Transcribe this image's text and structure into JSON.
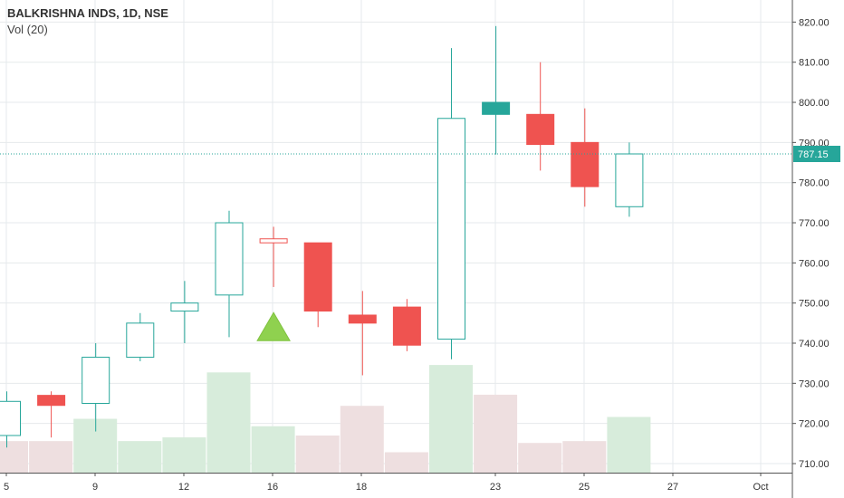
{
  "header": {
    "symbol_title": "BALKRISHNA INDS, 1D, NSE",
    "volume_label": "Vol (20)"
  },
  "colors": {
    "up": "#26a69a",
    "down": "#ef5350",
    "volume_up": "#d7ecdb",
    "volume_down": "#eedfe0",
    "grid": "#e6eaec",
    "marker": "#8fd14f",
    "price_line": "#26a69a"
  },
  "chart_data": {
    "type": "candlestick",
    "title": "BALKRISHNA INDS, 1D, NSE",
    "x_tick_labels": [
      "5",
      "9",
      "12",
      "16",
      "18",
      "23",
      "25",
      "27",
      "Oct"
    ],
    "y_tick_labels": [
      "710.00",
      "720.00",
      "730.00",
      "740.00",
      "750.00",
      "760.00",
      "770.00",
      "780.00",
      "790.00",
      "800.00",
      "810.00",
      "820.00"
    ],
    "ylim": [
      707,
      822
    ],
    "last_price": "787.15",
    "candles": [
      {
        "open": 717,
        "high": 728,
        "low": 714,
        "close": 725.5,
        "direction": "up"
      },
      {
        "open": 727,
        "high": 728,
        "low": 716.5,
        "close": 724.5,
        "direction": "down"
      },
      {
        "open": 725,
        "high": 740,
        "low": 718,
        "close": 736.5,
        "direction": "up"
      },
      {
        "open": 736.5,
        "high": 747.5,
        "low": 735.5,
        "close": 745,
        "direction": "up"
      },
      {
        "open": 748,
        "high": 755.5,
        "low": 740,
        "close": 750,
        "direction": "up"
      },
      {
        "open": 752,
        "high": 773,
        "low": 741.5,
        "close": 770,
        "direction": "up"
      },
      {
        "open": 765,
        "high": 769,
        "low": 754,
        "close": 766,
        "direction": "up"
      },
      {
        "open": 765,
        "high": 765,
        "low": 744,
        "close": 748,
        "direction": "down"
      },
      {
        "open": 747,
        "high": 753,
        "low": 732,
        "close": 745,
        "direction": "down"
      },
      {
        "open": 749,
        "high": 751,
        "low": 738,
        "close": 739.5,
        "direction": "down"
      },
      {
        "open": 741,
        "high": 813.5,
        "low": 736,
        "close": 796,
        "direction": "up"
      },
      {
        "open": 797,
        "high": 819,
        "low": 787,
        "close": 800,
        "direction": "up"
      },
      {
        "open": 797,
        "high": 810,
        "low": 783,
        "close": 789.5,
        "direction": "down"
      },
      {
        "open": 790,
        "high": 798.5,
        "low": 774,
        "close": 779,
        "direction": "down"
      },
      {
        "open": 774,
        "high": 790,
        "low": 771.5,
        "close": 787.15,
        "direction": "up"
      }
    ],
    "volume_direction": [
      "down",
      "down",
      "up",
      "up",
      "up",
      "up",
      "up",
      "down",
      "down",
      "down",
      "up",
      "down",
      "down",
      "down",
      "up"
    ],
    "volume_relative": [
      0.17,
      0.17,
      0.29,
      0.17,
      0.19,
      0.54,
      0.25,
      0.2,
      0.36,
      0.11,
      0.58,
      0.42,
      0.16,
      0.17,
      0.3
    ],
    "signal_marker": {
      "shape": "triangle-up",
      "price": 744
    }
  }
}
